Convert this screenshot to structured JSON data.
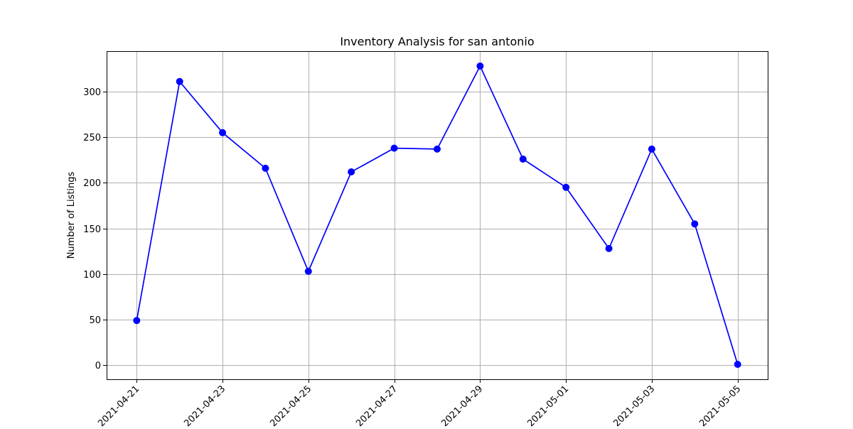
{
  "chart_data": {
    "type": "line",
    "title": "Inventory Analysis for san antonio",
    "xlabel": "",
    "ylabel": "Number of Listings",
    "x": [
      "2021-04-21",
      "2021-04-22",
      "2021-04-23",
      "2021-04-24",
      "2021-04-25",
      "2021-04-26",
      "2021-04-27",
      "2021-04-28",
      "2021-04-29",
      "2021-04-30",
      "2021-05-01",
      "2021-05-02",
      "2021-05-03",
      "2021-05-04",
      "2021-05-05"
    ],
    "series": [
      {
        "values": [
          49,
          311,
          255,
          216,
          103,
          212,
          238,
          237,
          328,
          226,
          195,
          128,
          237,
          155,
          1
        ],
        "color": "#0000ff",
        "marker": "circle"
      }
    ],
    "xticks": [
      "2021-04-21",
      "2021-04-23",
      "2021-04-25",
      "2021-04-27",
      "2021-04-29",
      "2021-05-01",
      "2021-05-03",
      "2021-05-05"
    ],
    "yticks": [
      0,
      50,
      100,
      150,
      200,
      250,
      300
    ],
    "ylim": [
      -15.35,
      344.35
    ],
    "xlim": [
      "2021-04-20 07:12",
      "2021-05-05 16:48"
    ],
    "grid": true,
    "legend": "none",
    "tick_label_rotation": 45
  }
}
